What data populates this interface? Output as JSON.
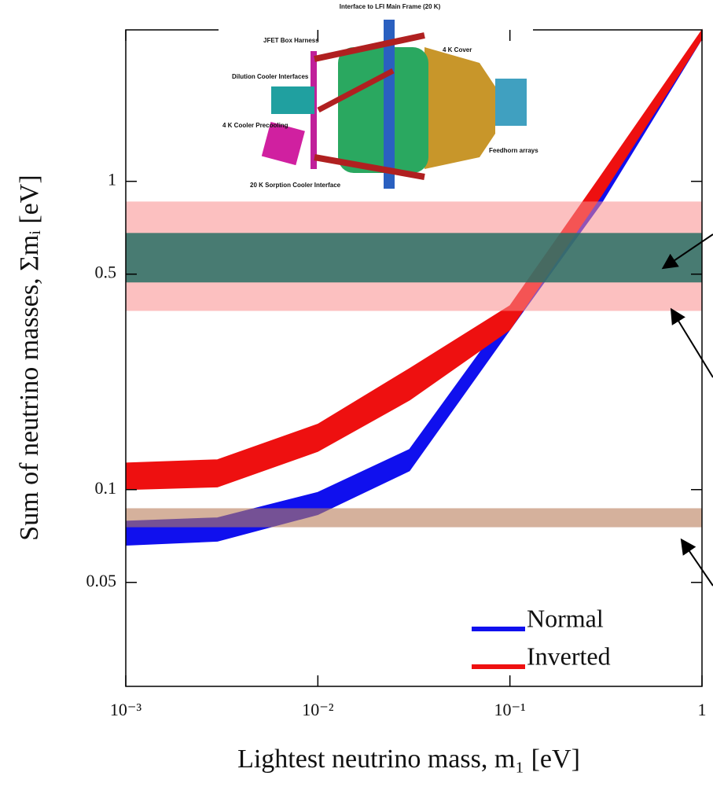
{
  "chart_data": {
    "type": "band",
    "x_label": "Lightest neutrino mass, m₁ [eV]",
    "y_label": "Sum of neutrino masses, Σmᵢ [eV]",
    "log_x": true,
    "log_y": true,
    "grid": false,
    "legend": "lower right",
    "xlim": [
      0.001,
      1
    ],
    "ylim": [
      0.023,
      3.1
    ],
    "xticks": [
      {
        "value": 0.001,
        "label": "10⁻³"
      },
      {
        "value": 0.01,
        "label": "10⁻²"
      },
      {
        "value": 0.1,
        "label": "10⁻¹"
      },
      1
    ],
    "yticks": [
      0.05,
      0.1,
      0.5,
      1
    ],
    "x": [
      0.001,
      0.003,
      0.01,
      0.03,
      0.1,
      0.3,
      1
    ],
    "series": [
      {
        "name": "Normal",
        "color": "#1010ee",
        "lower": [
          0.066,
          0.068,
          0.083,
          0.115,
          0.33,
          0.85,
          2.9
        ],
        "upper": [
          0.079,
          0.081,
          0.098,
          0.135,
          0.38,
          1.0,
          3.05
        ]
      },
      {
        "name": "Inverted",
        "color": "#ee1010",
        "lower": [
          0.1,
          0.102,
          0.133,
          0.195,
          0.33,
          0.9,
          2.9
        ],
        "upper": [
          0.122,
          0.125,
          0.163,
          0.247,
          0.395,
          1.05,
          3.1
        ]
      }
    ],
    "bands": [
      {
        "range": [
          0.38,
          0.86
        ],
        "color": "rgba(250,140,140,0.55)"
      },
      {
        "range": [
          0.47,
          0.68
        ],
        "color": "rgba(40,110,100,0.85)"
      },
      {
        "range": [
          0.0755,
          0.087
        ],
        "color": "rgba(185,125,90,0.6)"
      }
    ],
    "annotations": [
      "Interface to LFI Main Frame (20 K)",
      "JFET Box Harness",
      "Dilution Cooler Interfaces",
      "4 K Cover",
      "4 K Cooler Precooling",
      "Feedhorn arrays",
      "20 K Sorption Cooler Interface"
    ]
  }
}
